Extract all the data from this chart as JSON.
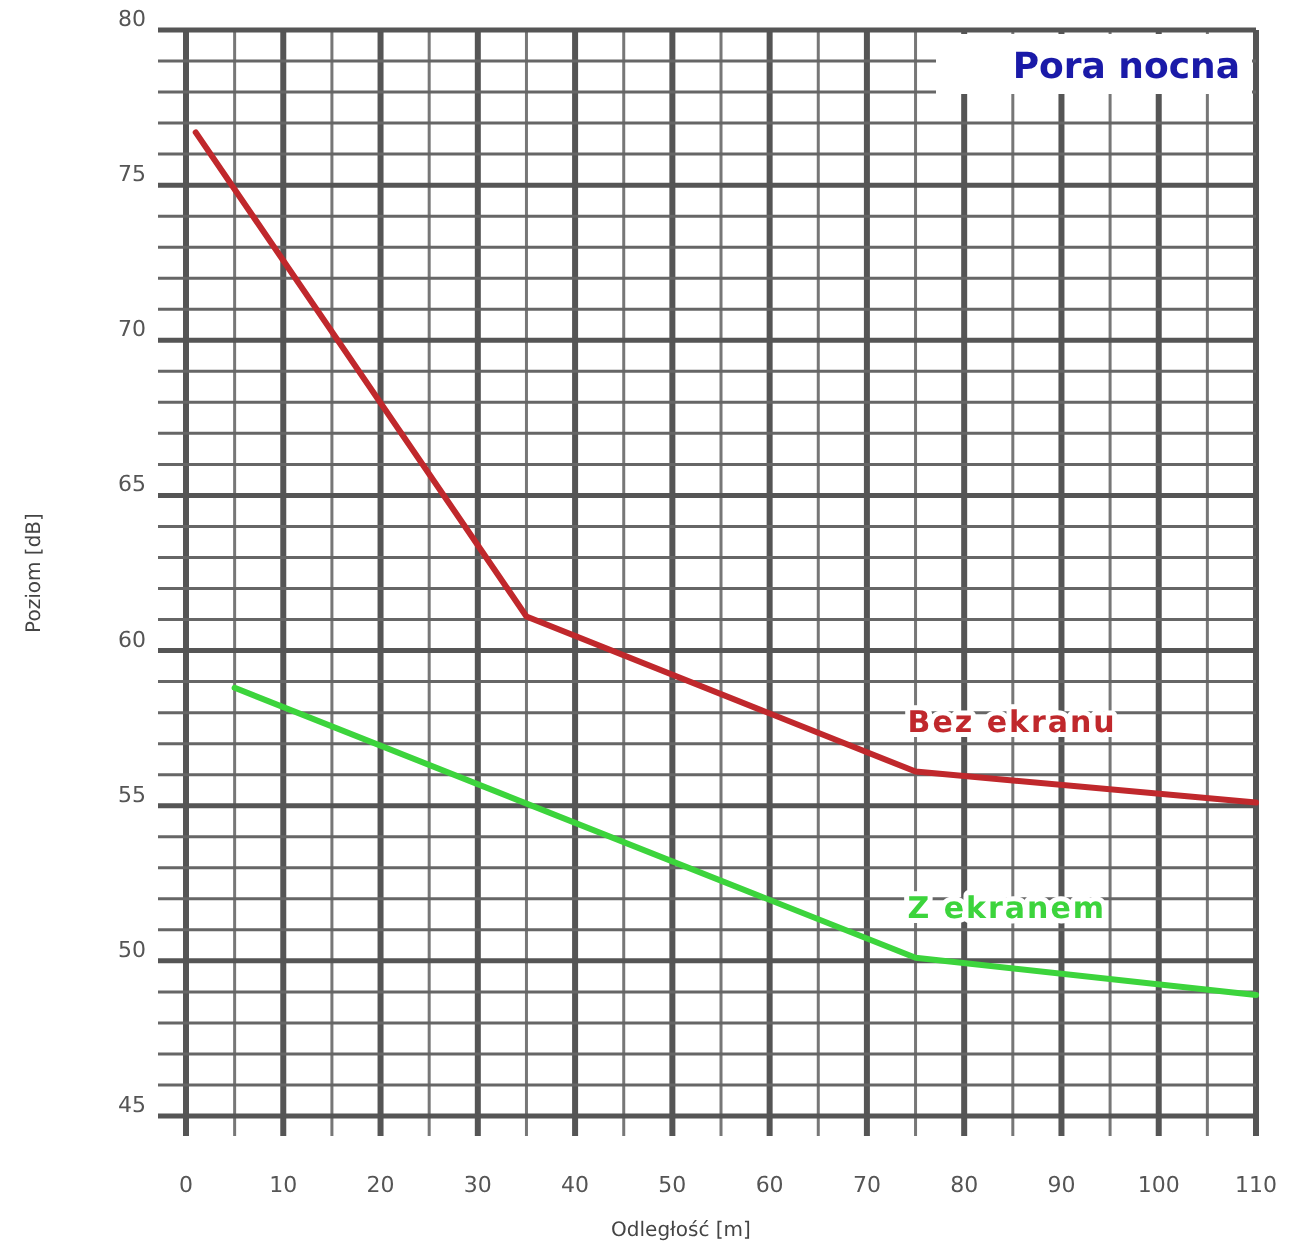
{
  "chart_data": {
    "type": "line",
    "title": "Pora nocna",
    "xlabel": "Odległość [m]",
    "ylabel": "Poziom [dB]",
    "xlim": [
      0,
      110
    ],
    "ylim": [
      45,
      80
    ],
    "xticks": [
      0,
      {
        "value": 5,
        "label": null
      },
      10,
      {
        "value": 15,
        "label": null
      },
      20,
      {
        "value": 25,
        "label": null
      },
      30,
      {
        "value": 35,
        "label": null
      },
      40,
      {
        "value": 45,
        "label": null
      },
      50,
      {
        "value": 55,
        "label": null
      },
      60,
      {
        "value": 65,
        "label": null
      },
      70,
      {
        "value": 75,
        "label": null
      },
      80,
      {
        "value": 85,
        "label": null
      },
      90,
      {
        "value": 95,
        "label": null
      },
      100,
      {
        "value": 105,
        "label": null
      },
      110
    ],
    "yticks": [
      45,
      {
        "value": 46,
        "label": null
      },
      {
        "value": 47,
        "label": null
      },
      {
        "value": 48,
        "label": null
      },
      {
        "value": 49,
        "label": null
      },
      50,
      {
        "value": 51,
        "label": null
      },
      {
        "value": 52,
        "label": null
      },
      {
        "value": 53,
        "label": null
      },
      {
        "value": 54,
        "label": null
      },
      55,
      {
        "value": 56,
        "label": null
      },
      {
        "value": 57,
        "label": null
      },
      {
        "value": 58,
        "label": null
      },
      {
        "value": 59,
        "label": null
      },
      60,
      {
        "value": 61,
        "label": null
      },
      {
        "value": 62,
        "label": null
      },
      {
        "value": 63,
        "label": null
      },
      {
        "value": 64,
        "label": null
      },
      65,
      {
        "value": 66,
        "label": null
      },
      {
        "value": 67,
        "label": null
      },
      {
        "value": 68,
        "label": null
      },
      {
        "value": 69,
        "label": null
      },
      70,
      {
        "value": 71,
        "label": null
      },
      {
        "value": 72,
        "label": null
      },
      {
        "value": 73,
        "label": null
      },
      {
        "value": 74,
        "label": null
      },
      75,
      {
        "value": 76,
        "label": null
      },
      {
        "value": 77,
        "label": null
      },
      {
        "value": 78,
        "label": null
      },
      {
        "value": 79,
        "label": null
      },
      80
    ],
    "grid": true,
    "marker": "none",
    "line_style": "solid",
    "series": [
      {
        "name": "Bez ekranu",
        "color": "#c0282c",
        "x": [
          1,
          35,
          75,
          110
        ],
        "values": [
          76.7,
          61.1,
          56.1,
          55.1
        ]
      },
      {
        "name": "Z ekranem",
        "color": "#3cd43c",
        "x": [
          5,
          75,
          110
        ],
        "values": [
          58.8,
          50.1,
          48.9
        ]
      }
    ]
  }
}
